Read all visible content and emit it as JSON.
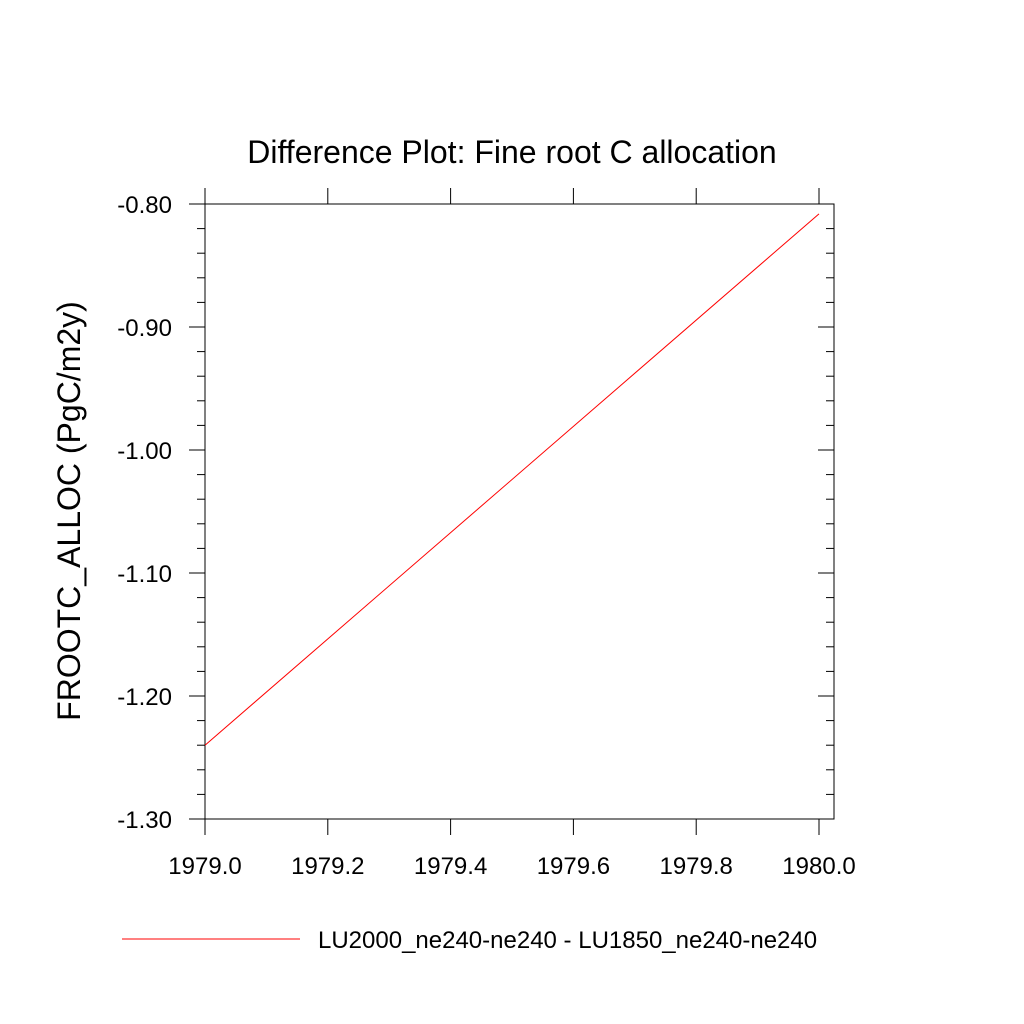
{
  "chart_data": {
    "type": "line",
    "title": "Difference Plot: Fine root C allocation",
    "xlabel": "",
    "ylabel": "FROOTC_ALLOC  (PgC/m2y)",
    "xlim": [
      1979.0,
      1980.0
    ],
    "ylim": [
      -1.3,
      -0.8
    ],
    "x_ticks": [
      "1979.0",
      "1979.2",
      "1979.4",
      "1979.6",
      "1979.8",
      "1980.0"
    ],
    "y_ticks": [
      "-0.80",
      "-0.90",
      "-1.00",
      "-1.10",
      "-1.20",
      "-1.30"
    ],
    "grid": false,
    "legend_position": "bottom",
    "series": [
      {
        "name": "LU2000_ne240-ne240 - LU1850_ne240-ne240",
        "color": "#ff0000",
        "x": [
          1979.0,
          1980.0
        ],
        "y": [
          -1.24,
          -0.808
        ]
      }
    ]
  }
}
